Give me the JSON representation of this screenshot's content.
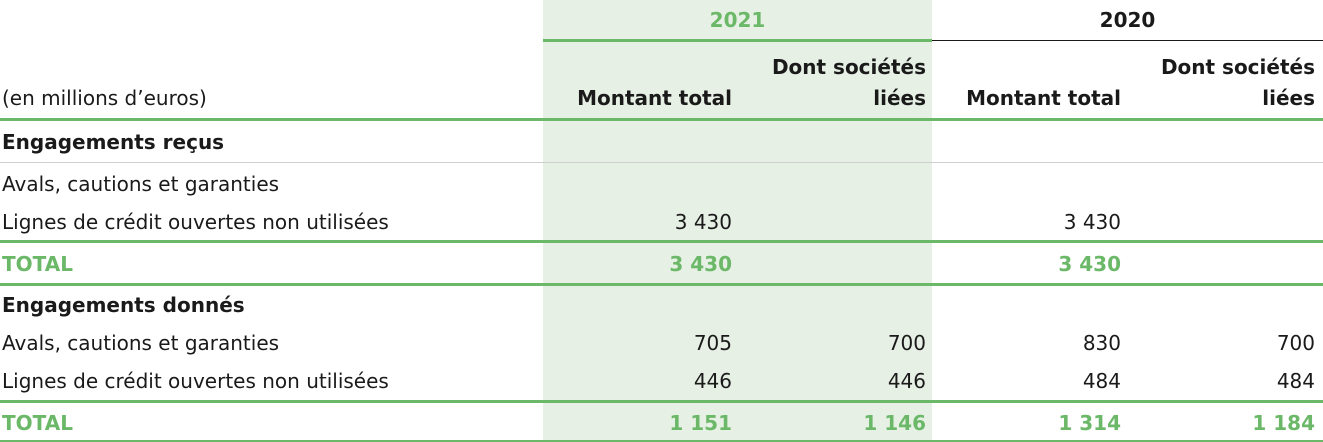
{
  "header": {
    "year_2021": "2021",
    "year_2020": "2020",
    "unit": "(en millions d’euros)",
    "col_total_2021": "Montant total",
    "col_related_2021_line1": "Dont sociétés",
    "col_related_2021_line2": "liées",
    "col_total_2020": "Montant total",
    "col_related_2020_line1": "Dont sociétés",
    "col_related_2020_line2": "liées"
  },
  "sections": [
    {
      "title": "Engagements reçus",
      "rows": [
        {
          "label": "Avals, cautions et garanties",
          "t2021": "",
          "r2021": "",
          "t2020": "",
          "r2020": ""
        },
        {
          "label": "Lignes de crédit ouvertes non utilisées",
          "t2021": "3 430",
          "r2021": "",
          "t2020": "3 430",
          "r2020": ""
        }
      ],
      "total": {
        "label": "TOTAL",
        "t2021": "3 430",
        "r2021": "",
        "t2020": "3 430",
        "r2020": ""
      }
    },
    {
      "title": "Engagements donnés",
      "rows": [
        {
          "label": "Avals, cautions et garanties",
          "t2021": "705",
          "r2021": "700",
          "t2020": "830",
          "r2020": "700"
        },
        {
          "label": "Lignes de crédit ouvertes non utilisées",
          "t2021": "446",
          "r2021": "446",
          "t2020": "484",
          "r2020": "484"
        }
      ],
      "total": {
        "label": "TOTAL",
        "t2021": "1 151",
        "r2021": "1 146",
        "t2020": "1 314",
        "r2020": "1 184"
      }
    }
  ],
  "colors": {
    "accent": "#6bb868",
    "highlight_bg": "#e6f0e4"
  }
}
